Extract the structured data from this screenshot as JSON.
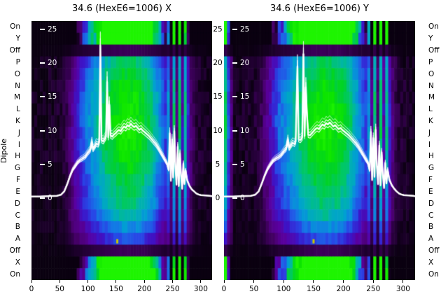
{
  "chart_data": {
    "type": "heatmap",
    "ylabel": "Dipole",
    "x_range": [
      0,
      320
    ],
    "x_ticks": [
      0,
      50,
      100,
      150,
      200,
      250,
      300
    ],
    "y_ticks": [
      25,
      20,
      15,
      10,
      5,
      0
    ],
    "y_axis_range": [
      -12.1,
      26.2
    ],
    "row_labels": [
      "On",
      "Y",
      "Off",
      "P",
      "O",
      "N",
      "M",
      "L",
      "K",
      "J",
      "I",
      "H",
      "G",
      "F",
      "E",
      "D",
      "C",
      "B",
      "A",
      "Off",
      "X",
      "On"
    ],
    "row_gains": [
      3.0,
      2.8,
      0.15,
      0.85,
      0.92,
      0.98,
      1.02,
      1.04,
      1.05,
      1.05,
      1.02,
      0.99,
      0.95,
      0.9,
      0.86,
      0.82,
      0.74,
      0.62,
      0.5,
      0.15,
      2.7,
      2.9
    ],
    "row_biases": [
      -1.05,
      -0.95,
      0,
      0,
      0,
      0,
      0,
      0,
      0,
      0,
      0,
      0,
      0,
      0,
      0,
      0,
      0,
      0,
      0,
      0,
      -0.95,
      -1.0
    ],
    "col_profile": [
      0.02,
      0.02,
      0.02,
      0.03,
      0.03,
      0.03,
      0.04,
      0.04,
      0.04,
      0.05,
      0.06,
      0.08,
      0.12,
      0.18,
      0.24,
      0.3,
      0.36,
      0.42,
      0.46,
      0.5,
      0.54,
      0.58,
      0.62,
      0.66,
      0.7,
      0.74,
      0.78,
      0.8,
      0.83,
      0.86,
      0.88,
      0.9,
      0.91,
      0.92,
      0.92,
      0.91,
      0.9,
      0.88,
      0.86,
      0.83,
      0.8,
      0.76,
      0.72,
      0.66,
      0.6,
      0.54,
      0.48,
      0.42,
      0.55,
      0.25,
      0.72,
      0.2,
      0.75,
      0.3,
      0.68,
      0.35,
      0.2,
      0.12,
      0.08,
      0.06,
      0.05,
      0.04,
      0.03,
      0.02
    ],
    "colormap_stops": [
      [
        0.0,
        "#0a0010"
      ],
      [
        0.08,
        "#250038"
      ],
      [
        0.18,
        "#4b0070"
      ],
      [
        0.28,
        "#5a00a0"
      ],
      [
        0.36,
        "#3c14c8"
      ],
      [
        0.44,
        "#2846e6"
      ],
      [
        0.52,
        "#1478e6"
      ],
      [
        0.6,
        "#00a0d2"
      ],
      [
        0.68,
        "#00b4aa"
      ],
      [
        0.76,
        "#00c864"
      ],
      [
        0.85,
        "#00d228"
      ],
      [
        0.93,
        "#0ce400"
      ],
      [
        1.0,
        "#1ef400"
      ]
    ],
    "noise_amplitude": 0.05,
    "line_color": "#ffffff",
    "text_color": "#000000",
    "panels": [
      {
        "name": "X",
        "title": "34.6 (HexE6=1006) X",
        "col_overrides": [],
        "artifacts": [
          {
            "x": 152,
            "row": 18,
            "color": "#c8c800"
          }
        ],
        "curve_points": [
          [
            0,
            0.25
          ],
          [
            15,
            0.25
          ],
          [
            30,
            0.3
          ],
          [
            45,
            0.35
          ],
          [
            52,
            0.5
          ],
          [
            58,
            1.0
          ],
          [
            63,
            2.0
          ],
          [
            68,
            3.2
          ],
          [
            73,
            4.2
          ],
          [
            78,
            4.8
          ],
          [
            82,
            5.3
          ],
          [
            86,
            5.6
          ],
          [
            90,
            5.8
          ],
          [
            95,
            6.1
          ],
          [
            100,
            6.7
          ],
          [
            104,
            7.1
          ],
          [
            107,
            8.3
          ],
          [
            109,
            7.2
          ],
          [
            112,
            7.6
          ],
          [
            115,
            8.1
          ],
          [
            118,
            7.9
          ],
          [
            120,
            8.3
          ],
          [
            122,
            22.6
          ],
          [
            124,
            8.6
          ],
          [
            127,
            8.4
          ],
          [
            130,
            8.8
          ],
          [
            132,
            9.1
          ],
          [
            134,
            17.2
          ],
          [
            136,
            9.0
          ],
          [
            138,
            13.8
          ],
          [
            140,
            9.3
          ],
          [
            143,
            9.1
          ],
          [
            146,
            9.4
          ],
          [
            149,
            9.6
          ],
          [
            152,
            9.9
          ],
          [
            155,
            10.1
          ],
          [
            158,
            9.9
          ],
          [
            161,
            10.3
          ],
          [
            164,
            10.6
          ],
          [
            167,
            10.4
          ],
          [
            170,
            10.8
          ],
          [
            173,
            10.6
          ],
          [
            176,
            11.0
          ],
          [
            179,
            10.7
          ],
          [
            182,
            10.5
          ],
          [
            185,
            10.7
          ],
          [
            188,
            10.4
          ],
          [
            191,
            10.1
          ],
          [
            194,
            10.3
          ],
          [
            197,
            10.0
          ],
          [
            200,
            9.8
          ],
          [
            204,
            9.5
          ],
          [
            208,
            9.2
          ],
          [
            212,
            8.8
          ],
          [
            216,
            8.4
          ],
          [
            220,
            8.0
          ],
          [
            224,
            7.5
          ],
          [
            228,
            6.9
          ],
          [
            232,
            6.3
          ],
          [
            236,
            5.7
          ],
          [
            240,
            5.1
          ],
          [
            243,
            4.2
          ],
          [
            245,
            9.6
          ],
          [
            247,
            2.6
          ],
          [
            249,
            8.7
          ],
          [
            251,
            3.1
          ],
          [
            253,
            9.9
          ],
          [
            255,
            4.6
          ],
          [
            257,
            2.0
          ],
          [
            259,
            7.6
          ],
          [
            261,
            1.8
          ],
          [
            263,
            6.6
          ],
          [
            265,
            3.4
          ],
          [
            267,
            1.4
          ],
          [
            269,
            5.1
          ],
          [
            271,
            2.1
          ],
          [
            273,
            4.1
          ],
          [
            276,
            2.6
          ],
          [
            280,
            1.8
          ],
          [
            284,
            1.3
          ],
          [
            288,
            1.0
          ],
          [
            292,
            0.7
          ],
          [
            296,
            0.55
          ],
          [
            300,
            0.45
          ],
          [
            308,
            0.4
          ],
          [
            316,
            0.35
          ],
          [
            320,
            0.3
          ]
        ]
      },
      {
        "name": "Y",
        "title": "34.6 (HexE6=1006) Y",
        "col_overrides": [
          [
            0,
            0.75
          ],
          [
            1,
            0.45
          ],
          [
            2,
            0.22
          ]
        ],
        "artifacts": [
          {
            "x": 150,
            "row": 18,
            "color": "#c8c800"
          }
        ],
        "curve_points": [
          [
            0,
            0.25
          ],
          [
            15,
            0.25
          ],
          [
            30,
            0.3
          ],
          [
            45,
            0.35
          ],
          [
            52,
            0.5
          ],
          [
            58,
            1.0
          ],
          [
            63,
            2.1
          ],
          [
            68,
            3.3
          ],
          [
            73,
            4.3
          ],
          [
            78,
            5.0
          ],
          [
            82,
            5.5
          ],
          [
            86,
            5.8
          ],
          [
            90,
            6.0
          ],
          [
            95,
            6.3
          ],
          [
            100,
            6.9
          ],
          [
            104,
            7.3
          ],
          [
            107,
            8.6
          ],
          [
            109,
            7.4
          ],
          [
            112,
            7.8
          ],
          [
            115,
            8.2
          ],
          [
            118,
            8.0
          ],
          [
            120,
            8.4
          ],
          [
            123,
            19.5
          ],
          [
            125,
            8.7
          ],
          [
            128,
            8.6
          ],
          [
            131,
            9.0
          ],
          [
            133,
            21.3
          ],
          [
            135,
            9.2
          ],
          [
            137,
            16.4
          ],
          [
            139,
            12.2
          ],
          [
            141,
            9.4
          ],
          [
            144,
            9.3
          ],
          [
            147,
            9.6
          ],
          [
            150,
            9.9
          ],
          [
            153,
            10.2
          ],
          [
            156,
            10.4
          ],
          [
            159,
            10.2
          ],
          [
            162,
            10.6
          ],
          [
            165,
            10.9
          ],
          [
            168,
            10.7
          ],
          [
            171,
            11.1
          ],
          [
            174,
            10.9
          ],
          [
            177,
            11.2
          ],
          [
            180,
            10.9
          ],
          [
            183,
            10.6
          ],
          [
            186,
            10.8
          ],
          [
            189,
            10.5
          ],
          [
            192,
            10.2
          ],
          [
            195,
            10.4
          ],
          [
            198,
            10.1
          ],
          [
            201,
            9.9
          ],
          [
            205,
            9.6
          ],
          [
            209,
            9.3
          ],
          [
            213,
            8.9
          ],
          [
            217,
            8.5
          ],
          [
            221,
            8.1
          ],
          [
            225,
            7.6
          ],
          [
            229,
            7.0
          ],
          [
            233,
            6.4
          ],
          [
            237,
            5.8
          ],
          [
            241,
            5.2
          ],
          [
            244,
            4.1
          ],
          [
            246,
            9.8
          ],
          [
            248,
            2.7
          ],
          [
            250,
            8.9
          ],
          [
            252,
            3.2
          ],
          [
            254,
            10.1
          ],
          [
            256,
            4.7
          ],
          [
            258,
            2.1
          ],
          [
            260,
            7.8
          ],
          [
            262,
            1.9
          ],
          [
            264,
            6.8
          ],
          [
            266,
            3.5
          ],
          [
            268,
            1.5
          ],
          [
            270,
            5.2
          ],
          [
            272,
            2.2
          ],
          [
            274,
            4.2
          ],
          [
            277,
            2.7
          ],
          [
            281,
            1.9
          ],
          [
            285,
            1.4
          ],
          [
            289,
            1.0
          ],
          [
            293,
            0.7
          ],
          [
            297,
            0.55
          ],
          [
            301,
            0.45
          ],
          [
            309,
            0.4
          ],
          [
            317,
            0.35
          ],
          [
            320,
            0.3
          ]
        ]
      }
    ]
  }
}
